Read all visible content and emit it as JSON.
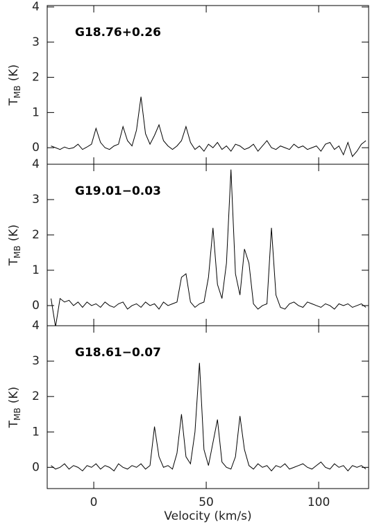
{
  "chart_data": [
    {
      "type": "line",
      "title": "G18.76+0.26",
      "ylabel": "T",
      "ylabel_sub": "MB",
      "ylabel_unit": "(K)",
      "color": "#000000",
      "grid": false,
      "xlim": [
        -20.7,
        122.2
      ],
      "xticks": [
        0,
        50,
        100
      ],
      "ylim": [
        -0.47,
        4.04
      ],
      "yticks": [
        0,
        1,
        2,
        3,
        4
      ],
      "x": [
        -19,
        -17,
        -15,
        -13,
        -11,
        -9,
        -7,
        -5,
        -3,
        -1,
        1,
        3,
        5,
        7,
        9,
        11,
        13,
        15,
        17,
        19,
        21,
        23,
        25,
        27,
        29,
        31,
        33,
        35,
        37,
        39,
        41,
        43,
        45,
        47,
        49,
        51,
        53,
        55,
        57,
        59,
        61,
        63,
        65,
        67,
        69,
        71,
        73,
        75,
        77,
        79,
        81,
        83,
        85,
        87,
        89,
        91,
        93,
        95,
        97,
        99,
        101,
        103,
        105,
        107,
        109,
        111,
        113,
        115,
        117,
        119,
        121
      ],
      "values": [
        0.05,
        0,
        -0.05,
        0.02,
        -0.03,
        0,
        0.1,
        -0.05,
        0.02,
        0.1,
        0.55,
        0.15,
        0,
        -0.05,
        0.05,
        0.1,
        0.6,
        0.2,
        0.05,
        0.5,
        1.45,
        0.4,
        0.1,
        0.35,
        0.65,
        0.2,
        0.05,
        -0.05,
        0.05,
        0.2,
        0.6,
        0.15,
        -0.05,
        0.05,
        -0.1,
        0.1,
        0,
        0.15,
        -0.05,
        0.05,
        -0.1,
        0.1,
        0.05,
        -0.05,
        0,
        0.1,
        -0.1,
        0.05,
        0.2,
        0,
        -0.05,
        0.05,
        0,
        -0.05,
        0.1,
        0,
        0.05,
        -0.05,
        0,
        0.05,
        -0.1,
        0.1,
        0.15,
        -0.05,
        0.05,
        -0.2,
        0.15,
        -0.25,
        -0.1,
        0.1,
        0.2
      ]
    },
    {
      "type": "line",
      "title": "G19.01−0.03",
      "ylabel": "T",
      "ylabel_sub": "MB",
      "ylabel_unit": "(K)",
      "color": "#000000",
      "grid": false,
      "xlim": [
        -20.7,
        122.2
      ],
      "xticks": [
        0,
        50,
        100
      ],
      "ylim": [
        -0.57,
        4
      ],
      "yticks": [
        0,
        1,
        2,
        3,
        4
      ],
      "x": [
        -19,
        -17,
        -15,
        -13,
        -11,
        -9,
        -7,
        -5,
        -3,
        -1,
        1,
        3,
        5,
        7,
        9,
        11,
        13,
        15,
        17,
        19,
        21,
        23,
        25,
        27,
        29,
        31,
        33,
        35,
        37,
        39,
        41,
        43,
        45,
        47,
        49,
        51,
        53,
        55,
        57,
        59,
        61,
        63,
        65,
        67,
        69,
        71,
        73,
        75,
        77,
        79,
        81,
        83,
        85,
        87,
        89,
        91,
        93,
        95,
        97,
        99,
        101,
        103,
        105,
        107,
        109,
        111,
        113,
        115,
        117,
        119,
        121
      ],
      "values": [
        0.2,
        -0.6,
        0.2,
        0.1,
        0.15,
        0,
        0.1,
        -0.05,
        0.1,
        0,
        0.05,
        -0.05,
        0.1,
        0,
        -0.05,
        0.05,
        0.1,
        -0.1,
        0,
        0.05,
        -0.05,
        0.1,
        0,
        0.05,
        -0.1,
        0.1,
        0,
        0.05,
        0.1,
        0.8,
        0.9,
        0.1,
        -0.05,
        0.05,
        0.1,
        0.8,
        2.2,
        0.6,
        0.2,
        1.2,
        3.85,
        0.9,
        0.3,
        1.6,
        1.2,
        0.05,
        -0.1,
        0,
        0.05,
        2.2,
        0.3,
        -0.05,
        -0.1,
        0.05,
        0.1,
        0,
        -0.05,
        0.1,
        0.05,
        0,
        -0.05,
        0.05,
        0,
        -0.1,
        0.05,
        0,
        0.05,
        -0.05,
        0,
        0.05,
        -0.05
      ]
    },
    {
      "type": "line",
      "title": "G18.61−0.07",
      "ylabel": "T",
      "ylabel_sub": "MB",
      "ylabel_unit": "(K)",
      "xlabel": "Velocity (km/s)",
      "color": "#000000",
      "grid": false,
      "xlim": [
        -20.7,
        122.2
      ],
      "xticks": [
        0,
        50,
        100
      ],
      "ylim": [
        -0.6,
        4
      ],
      "yticks": [
        0,
        1,
        2,
        3,
        4
      ],
      "x": [
        -19,
        -17,
        -15,
        -13,
        -11,
        -9,
        -7,
        -5,
        -3,
        -1,
        1,
        3,
        5,
        7,
        9,
        11,
        13,
        15,
        17,
        19,
        21,
        23,
        25,
        27,
        29,
        31,
        33,
        35,
        37,
        39,
        41,
        43,
        45,
        47,
        49,
        51,
        53,
        55,
        57,
        59,
        61,
        63,
        65,
        67,
        69,
        71,
        73,
        75,
        77,
        79,
        81,
        83,
        85,
        87,
        89,
        91,
        93,
        95,
        97,
        99,
        101,
        103,
        105,
        107,
        109,
        111,
        113,
        115,
        117,
        119,
        121
      ],
      "values": [
        0.05,
        -0.05,
        0,
        0.1,
        -0.05,
        0.05,
        0,
        -0.1,
        0.05,
        0,
        0.1,
        -0.05,
        0.05,
        0,
        -0.1,
        0.1,
        0,
        -0.05,
        0.05,
        0,
        0.1,
        -0.05,
        0.05,
        1.15,
        0.3,
        0,
        0.05,
        -0.05,
        0.4,
        1.5,
        0.3,
        0.1,
        1.0,
        2.95,
        0.5,
        0.05,
        0.7,
        1.35,
        0.15,
        0,
        -0.05,
        0.3,
        1.45,
        0.5,
        0.05,
        -0.05,
        0.1,
        0,
        0.05,
        -0.1,
        0.05,
        0,
        0.1,
        -0.05,
        0,
        0.05,
        0.1,
        0,
        -0.05,
        0.05,
        0.15,
        0,
        -0.05,
        0.1,
        0,
        0.05,
        -0.1,
        0.05,
        0,
        0.05,
        -0.05
      ]
    }
  ]
}
